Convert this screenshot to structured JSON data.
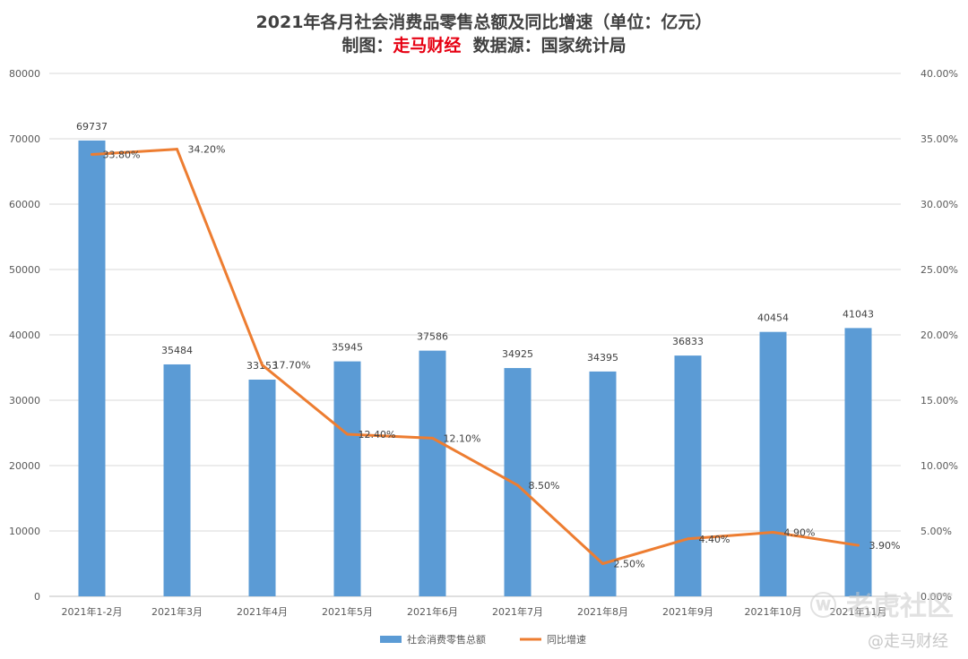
{
  "chart_data": {
    "type": "bar+line",
    "title": "2021年各月社会消费品零售总额及同比增速（单位：亿元）",
    "subtitle_prefix": "制图：",
    "subtitle_brand": "走马财经",
    "subtitle_source": "数据源：国家统计局",
    "categories": [
      "2021年1-2月",
      "2021年3月",
      "2021年4月",
      "2021年5月",
      "2021年6月",
      "2021年7月",
      "2021年8月",
      "2021年9月",
      "2021年10月",
      "2021年11月"
    ],
    "series": [
      {
        "name": "社会消费零售总额",
        "type": "bar",
        "axis": "left",
        "color": "#5b9bd5",
        "values": [
          69737,
          35484,
          33153,
          35945,
          37586,
          34925,
          34395,
          36833,
          40454,
          41043
        ],
        "labels": [
          "69737",
          "35484",
          "33153",
          "35945",
          "37586",
          "34925",
          "34395",
          "36833",
          "40454",
          "41043"
        ]
      },
      {
        "name": "同比增速",
        "type": "line",
        "axis": "right",
        "color": "#ed7d31",
        "values": [
          33.8,
          34.2,
          17.7,
          12.4,
          12.1,
          8.5,
          2.5,
          4.4,
          4.9,
          3.9
        ],
        "labels": [
          "33.80%",
          "34.20%",
          "17.70%",
          "12.40%",
          "12.10%",
          "8.50%",
          "2.50%",
          "4.40%",
          "4.90%",
          "3.90%"
        ]
      }
    ],
    "y_left": {
      "min": 0,
      "max": 80000,
      "ticks": [
        "0",
        "10000",
        "20000",
        "30000",
        "40000",
        "50000",
        "60000",
        "70000",
        "80000"
      ]
    },
    "y_right": {
      "min": 0,
      "max": 40,
      "ticks": [
        "0.00%",
        "5.00%",
        "10.00%",
        "15.00%",
        "20.00%",
        "25.00%",
        "30.00%",
        "35.00%",
        "40.00%"
      ]
    },
    "grid": true,
    "legend_position": "bottom"
  },
  "watermark": {
    "line1": "老虎社区",
    "line2": "@走马财经"
  }
}
